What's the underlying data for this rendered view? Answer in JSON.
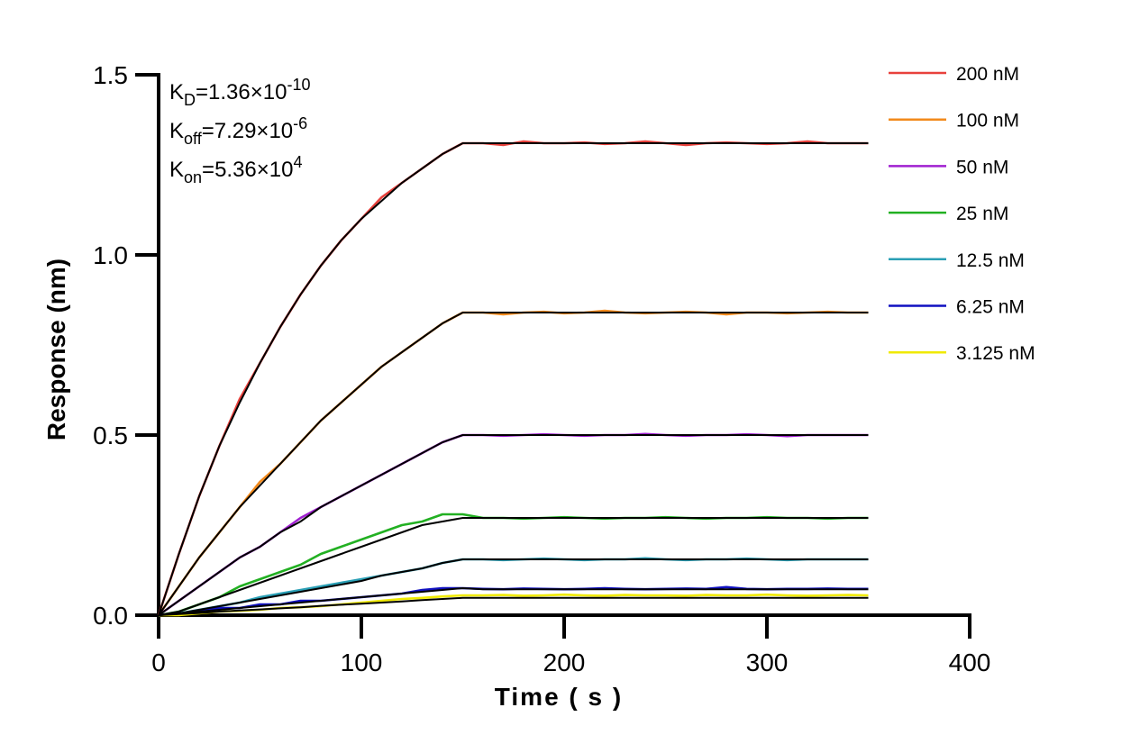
{
  "chart_data": {
    "type": "line",
    "x_label": "Time ( s )",
    "y_label": "Response (nm)",
    "annotations": [
      {
        "base": "K",
        "sub": "D",
        "text": "=1.36×10",
        "sup": "-10"
      },
      {
        "base": "K",
        "sub": "off",
        "text": "=7.29×10",
        "sup": "-6"
      },
      {
        "base": "K",
        "sub": "on",
        "text": "=5.36×10",
        "sup": "4"
      }
    ],
    "xlim": [
      0,
      400
    ],
    "xticks": [
      0,
      100,
      200,
      300,
      400
    ],
    "ylim": [
      0,
      1.5
    ],
    "yticks": [
      {
        "value": 0,
        "label": "0.0"
      },
      0.5,
      {
        "value": 1,
        "label": "1.0"
      },
      1.5
    ],
    "fit_color": "#000000",
    "x": [
      0,
      10,
      20,
      30,
      40,
      50,
      60,
      70,
      80,
      90,
      100,
      110,
      120,
      130,
      140,
      150,
      160,
      170,
      180,
      190,
      200,
      210,
      220,
      230,
      240,
      250,
      260,
      270,
      280,
      290,
      300,
      310,
      320,
      330,
      340,
      350
    ],
    "series": [
      {
        "name": "200 nM",
        "color": "#e8413c",
        "values": [
          0,
          0.17,
          0.33,
          0.47,
          0.6,
          0.7,
          0.8,
          0.89,
          0.97,
          1.04,
          1.1,
          1.16,
          1.2,
          1.24,
          1.28,
          1.31,
          1.31,
          1.305,
          1.315,
          1.31,
          1.31,
          1.312,
          1.308,
          1.31,
          1.315,
          1.31,
          1.305,
          1.31,
          1.312,
          1.31,
          1.308,
          1.31,
          1.315,
          1.31,
          1.31,
          1.31
        ],
        "fit_values": [
          0,
          0.17,
          0.33,
          0.47,
          0.59,
          0.7,
          0.8,
          0.89,
          0.97,
          1.04,
          1.1,
          1.15,
          1.2,
          1.24,
          1.28,
          1.31,
          1.31,
          1.31,
          1.31,
          1.31,
          1.31,
          1.31,
          1.31,
          1.31,
          1.31,
          1.31,
          1.31,
          1.31,
          1.31,
          1.31,
          1.31,
          1.31,
          1.31,
          1.31,
          1.31,
          1.31
        ]
      },
      {
        "name": "100 nM",
        "color": "#f28a1c",
        "values": [
          0,
          0.08,
          0.16,
          0.23,
          0.3,
          0.37,
          0.42,
          0.48,
          0.54,
          0.59,
          0.64,
          0.69,
          0.73,
          0.77,
          0.81,
          0.84,
          0.84,
          0.835,
          0.84,
          0.842,
          0.838,
          0.84,
          0.845,
          0.84,
          0.838,
          0.84,
          0.842,
          0.84,
          0.835,
          0.84,
          0.84,
          0.838,
          0.84,
          0.842,
          0.84,
          0.84
        ],
        "fit_values": [
          0,
          0.08,
          0.16,
          0.23,
          0.3,
          0.36,
          0.42,
          0.48,
          0.54,
          0.59,
          0.64,
          0.69,
          0.73,
          0.77,
          0.81,
          0.84,
          0.84,
          0.84,
          0.84,
          0.84,
          0.84,
          0.84,
          0.84,
          0.84,
          0.84,
          0.84,
          0.84,
          0.84,
          0.84,
          0.84,
          0.84,
          0.84,
          0.84,
          0.84,
          0.84,
          0.84
        ]
      },
      {
        "name": "50 nM",
        "color": "#a020d0",
        "values": [
          0,
          0.04,
          0.08,
          0.12,
          0.16,
          0.19,
          0.23,
          0.27,
          0.3,
          0.33,
          0.36,
          0.39,
          0.42,
          0.45,
          0.48,
          0.5,
          0.5,
          0.498,
          0.5,
          0.502,
          0.5,
          0.498,
          0.5,
          0.5,
          0.503,
          0.5,
          0.498,
          0.5,
          0.5,
          0.502,
          0.5,
          0.497,
          0.5,
          0.5,
          0.5,
          0.5
        ],
        "fit_values": [
          0,
          0.04,
          0.08,
          0.12,
          0.16,
          0.19,
          0.23,
          0.26,
          0.3,
          0.33,
          0.36,
          0.39,
          0.42,
          0.45,
          0.48,
          0.5,
          0.5,
          0.5,
          0.5,
          0.5,
          0.5,
          0.5,
          0.5,
          0.5,
          0.5,
          0.5,
          0.5,
          0.5,
          0.5,
          0.5,
          0.5,
          0.5,
          0.5,
          0.5,
          0.5,
          0.5
        ]
      },
      {
        "name": "25 nM",
        "color": "#22b022",
        "values": [
          0,
          0.01,
          0.03,
          0.05,
          0.08,
          0.1,
          0.12,
          0.14,
          0.17,
          0.19,
          0.21,
          0.23,
          0.25,
          0.26,
          0.28,
          0.28,
          0.27,
          0.27,
          0.268,
          0.27,
          0.272,
          0.27,
          0.268,
          0.27,
          0.27,
          0.272,
          0.27,
          0.268,
          0.27,
          0.27,
          0.272,
          0.27,
          0.27,
          0.268,
          0.27,
          0.27
        ],
        "fit_values": [
          0,
          0.01,
          0.03,
          0.05,
          0.07,
          0.09,
          0.11,
          0.13,
          0.15,
          0.17,
          0.19,
          0.21,
          0.23,
          0.25,
          0.26,
          0.27,
          0.27,
          0.27,
          0.27,
          0.27,
          0.27,
          0.27,
          0.27,
          0.27,
          0.27,
          0.27,
          0.27,
          0.27,
          0.27,
          0.27,
          0.27,
          0.27,
          0.27,
          0.27,
          0.27,
          0.27
        ]
      },
      {
        "name": "12.5 nM",
        "color": "#2a9fb5",
        "values": [
          0,
          0.005,
          0.015,
          0.025,
          0.035,
          0.05,
          0.06,
          0.07,
          0.08,
          0.09,
          0.1,
          0.11,
          0.12,
          0.13,
          0.145,
          0.155,
          0.155,
          0.153,
          0.155,
          0.157,
          0.155,
          0.153,
          0.155,
          0.155,
          0.158,
          0.155,
          0.153,
          0.155,
          0.155,
          0.157,
          0.155,
          0.153,
          0.155,
          0.155,
          0.155,
          0.155
        ],
        "fit_values": [
          0,
          0.005,
          0.015,
          0.025,
          0.035,
          0.045,
          0.055,
          0.065,
          0.075,
          0.085,
          0.095,
          0.11,
          0.12,
          0.13,
          0.145,
          0.155,
          0.155,
          0.155,
          0.155,
          0.155,
          0.155,
          0.155,
          0.155,
          0.155,
          0.155,
          0.155,
          0.155,
          0.155,
          0.155,
          0.155,
          0.155,
          0.155,
          0.155,
          0.155,
          0.155,
          0.155
        ]
      },
      {
        "name": "6.25 nM",
        "color": "#1010c0",
        "values": [
          0,
          0.005,
          0.01,
          0.02,
          0.02,
          0.03,
          0.03,
          0.04,
          0.04,
          0.045,
          0.05,
          0.055,
          0.06,
          0.07,
          0.075,
          0.075,
          0.073,
          0.072,
          0.074,
          0.073,
          0.072,
          0.073,
          0.075,
          0.073,
          0.072,
          0.073,
          0.074,
          0.073,
          0.078,
          0.073,
          0.072,
          0.073,
          0.073,
          0.074,
          0.073,
          0.073
        ],
        "fit_values": [
          0,
          0.005,
          0.01,
          0.015,
          0.02,
          0.025,
          0.03,
          0.035,
          0.04,
          0.045,
          0.05,
          0.055,
          0.06,
          0.065,
          0.07,
          0.075,
          0.072,
          0.072,
          0.072,
          0.072,
          0.072,
          0.072,
          0.072,
          0.072,
          0.072,
          0.072,
          0.072,
          0.072,
          0.072,
          0.072,
          0.072,
          0.072,
          0.072,
          0.072,
          0.072,
          0.072
        ]
      },
      {
        "name": "3.125 nM",
        "color": "#f0ea00",
        "values": [
          0,
          0,
          0.005,
          0.01,
          0.012,
          0.015,
          0.02,
          0.022,
          0.025,
          0.03,
          0.035,
          0.04,
          0.045,
          0.048,
          0.052,
          0.055,
          0.055,
          0.056,
          0.054,
          0.055,
          0.057,
          0.055,
          0.054,
          0.056,
          0.055,
          0.055,
          0.054,
          0.056,
          0.055,
          0.055,
          0.057,
          0.055,
          0.054,
          0.055,
          0.056,
          0.055
        ],
        "fit_values": [
          0,
          0.003,
          0.006,
          0.01,
          0.013,
          0.016,
          0.019,
          0.022,
          0.026,
          0.029,
          0.032,
          0.035,
          0.038,
          0.042,
          0.045,
          0.048,
          0.048,
          0.048,
          0.048,
          0.048,
          0.048,
          0.048,
          0.048,
          0.048,
          0.048,
          0.048,
          0.048,
          0.048,
          0.048,
          0.048,
          0.048,
          0.048,
          0.048,
          0.048,
          0.048,
          0.048
        ]
      }
    ]
  }
}
